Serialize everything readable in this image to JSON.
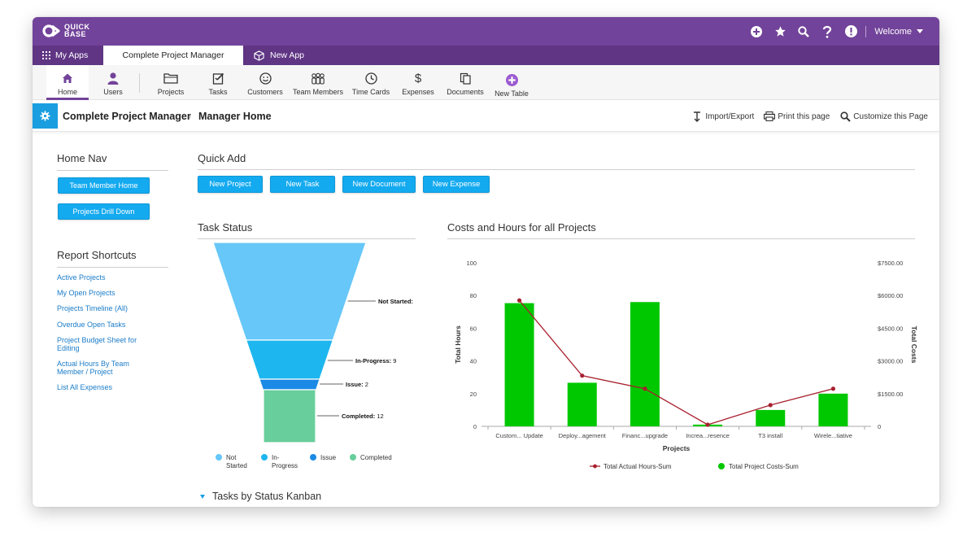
{
  "brand": {
    "line1": "QUICK",
    "line2": "BASE"
  },
  "topbar": {
    "welcome_label": "Welcome"
  },
  "app_tabs": {
    "my_apps": "My Apps",
    "active": "Complete Project Manager",
    "new_app": "New App"
  },
  "toolbar": {
    "items": [
      {
        "label": "Home",
        "icon": "home-icon"
      },
      {
        "label": "Users",
        "icon": "user-icon"
      },
      {
        "label": "Projects",
        "icon": "folder-icon"
      },
      {
        "label": "Tasks",
        "icon": "task-icon"
      },
      {
        "label": "Customers",
        "icon": "smiley-icon"
      },
      {
        "label": "Team Members",
        "icon": "team-icon"
      },
      {
        "label": "Time Cards",
        "icon": "clock-icon"
      },
      {
        "label": "Expenses",
        "icon": "dollar-icon"
      },
      {
        "label": "Documents",
        "icon": "documents-icon"
      },
      {
        "label": "New Table",
        "icon": "plus-circle-icon"
      }
    ]
  },
  "breadcrumb": {
    "app": "Complete Project Manager",
    "page": "Manager Home"
  },
  "page_actions": {
    "import_export": "Import/Export",
    "print": "Print this page",
    "customize": "Customize this Page"
  },
  "home_nav": {
    "title": "Home Nav",
    "buttons": [
      "Team Member Home",
      "Projects Drill Down"
    ]
  },
  "report_shortcuts": {
    "title": "Report Shortcuts",
    "links": [
      "Active Projects",
      "My Open Projects",
      "Projects Timeline (All)",
      "Overdue Open Tasks",
      "Project Budget Sheet for Editing",
      "Actual Hours By Team Member / Project",
      "List All Expenses"
    ]
  },
  "quick_add": {
    "title": "Quick Add",
    "buttons": [
      "New Project",
      "New Task",
      "New Document",
      "New Expense"
    ]
  },
  "task_status_title": "Task Status",
  "costs_title": "Costs and Hours for all Projects",
  "kanban_title": "Tasks by Status Kanban",
  "colors": {
    "purple": "#72439a",
    "blue_button": "#14aaf0",
    "bar_green": "#00c800",
    "line_red": "#a8202e"
  },
  "chart_data": [
    {
      "type": "funnel",
      "title": "Task Status",
      "stages": [
        {
          "name": "Not Started",
          "label": "Not Started:",
          "value": null,
          "color": "#66c7f8"
        },
        {
          "name": "In-Progress",
          "label": "In-Progress:",
          "value": 9,
          "color": "#1eb6ef"
        },
        {
          "name": "Issue",
          "label": "Issue:",
          "value": 2,
          "color": "#1a8ae6"
        },
        {
          "name": "Completed",
          "label": "Completed:",
          "value": 12,
          "color": "#68ce9b"
        }
      ],
      "legend": [
        "Not Started",
        "In-Progress",
        "Issue",
        "Completed"
      ],
      "legend_placement": "bottom"
    },
    {
      "type": "bar",
      "title": "Costs and Hours for all Projects",
      "categories": [
        "Custom... Update",
        "Deploy...agement",
        "Financ...upgrade",
        "Increa...resence",
        "T3 install",
        "Wirele...tiative"
      ],
      "xlabel": "Projects",
      "ylabel": "Total Hours",
      "y2label": "Total Costs",
      "ylim": [
        0,
        100
      ],
      "y2lim": [
        0,
        7500
      ],
      "yticks": [
        "0",
        "20",
        "40",
        "60",
        "80",
        "100"
      ],
      "y2ticks": [
        "0",
        "$1500.00",
        "$3000.00",
        "$4500.00",
        "$6000.00",
        "$7500.00"
      ],
      "series": [
        {
          "name": "Total Project Costs-Sum",
          "kind": "bar",
          "axis": "right",
          "values": [
            5650,
            2000,
            5700,
            80,
            750,
            1500
          ]
        },
        {
          "name": "Total Actual Hours-Sum",
          "kind": "line",
          "axis": "left",
          "values": [
            77,
            31,
            23,
            1,
            13,
            23
          ]
        }
      ],
      "legend_placement": "bottom"
    }
  ]
}
